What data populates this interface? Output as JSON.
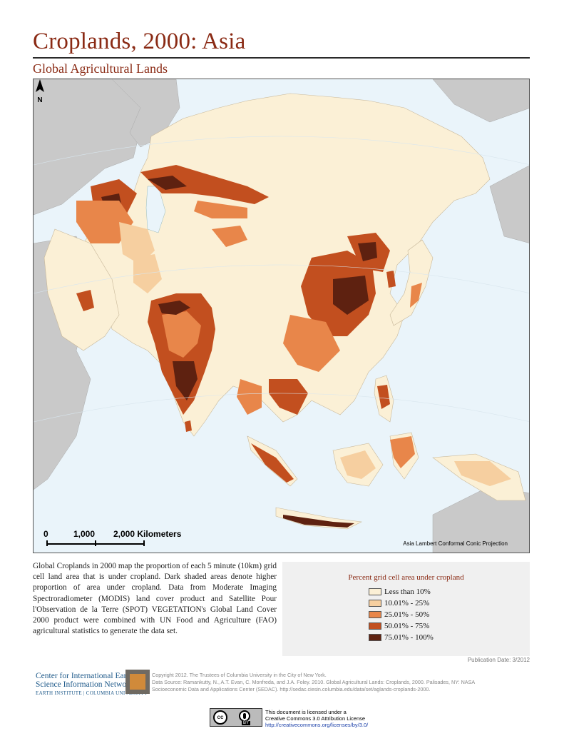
{
  "header": {
    "title": "Croplands, 2000: Asia",
    "subtitle": "Global Agricultural Lands"
  },
  "map": {
    "colors": {
      "ocean": "#eaf4fa",
      "land_outside": "#c9c9c9",
      "land_low": "#fbf0d6",
      "class_2": "#f6cfa0",
      "class_3": "#e8864a",
      "class_4": "#c24f1f",
      "class_5": "#5e2110"
    },
    "scale_bar": {
      "labels": [
        "0",
        "1,000",
        "2,000 Kilometers"
      ]
    },
    "projection": "Asia Lambert Conformal Conic Projection",
    "north_label": "N"
  },
  "description": "Global Croplands in 2000 map the proportion of each 5 minute (10km) grid cell land area that is under cropland. Dark shaded areas denote higher proportion of area under cropland. Data from Moderate Imaging Spectroradiometer (MODIS) land cover product and Satellite Pour l'Observation de la Terre (SPOT) VEGETATION's Global Land Cover 2000 product were combined with UN Food and Agriculture (FAO) agricultural statistics to generate the data set.",
  "legend": {
    "title": "Percent grid cell area under cropland",
    "items": [
      {
        "label": "Less than 10%",
        "color": "#fbf0d6"
      },
      {
        "label": "10.01% - 25%",
        "color": "#f6cfa0"
      },
      {
        "label": "25.01% - 50%",
        "color": "#e8864a"
      },
      {
        "label": "50.01% - 75%",
        "color": "#c24f1f"
      },
      {
        "label": "75.01% - 100%",
        "color": "#5e2110"
      }
    ]
  },
  "publication_date": "Publication Date: 3/2012",
  "footer": {
    "org_line1": "Center for International Earth",
    "org_line2": "Science Information Network",
    "org_line3": "EARTH INSTITUTE | COLUMBIA UNIVERSITY",
    "credit_lines": [
      "Copyright 2012. The Trustees of Columbia University in the City of New York.",
      "Data Source: Ramankutty, N., A.T. Evan, C. Monfreda, and J.A. Foley. 2010. Global Agricultural Lands: Croplands, 2000. Palisades, NY: NASA",
      "Socioeconomic Data and Applications Center (SEDAC). http://sedac.ciesin.columbia.edu/data/set/aglands-croplands-2000."
    ],
    "license_lines": [
      "This document is licensed under a",
      "Creative Commons 3.0 Attribution License",
      "http://creativecommons.org/licenses/by/3.0/"
    ],
    "cc_label": "cc",
    "by_label": "BY"
  }
}
